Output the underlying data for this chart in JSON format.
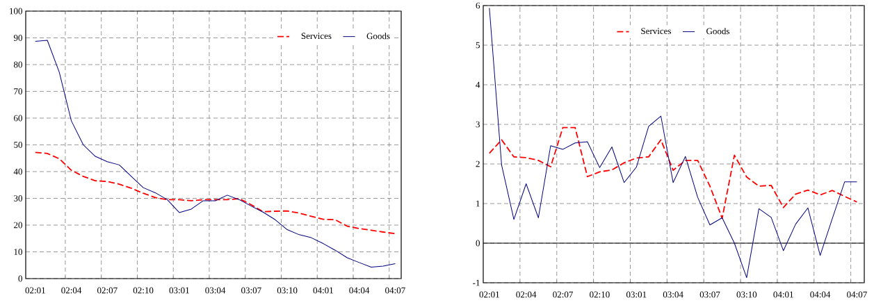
{
  "chart_data": [
    {
      "type": "line",
      "categories": [
        "02:01",
        null,
        null,
        "02:04",
        null,
        null,
        "02:07",
        null,
        null,
        "02:10",
        null,
        null,
        "03:01",
        null,
        null,
        "03:04",
        null,
        null,
        "03:07",
        null,
        null,
        "03:10",
        null,
        null,
        "04:01",
        null,
        null,
        "04:04",
        null,
        null,
        "04:07"
      ],
      "series": [
        {
          "name": "Services",
          "color": "#ff0000",
          "line_style": "dashed",
          "values": [
            47.2,
            46.8,
            44.8,
            40.5,
            38.2,
            36.6,
            36.3,
            35.3,
            33.8,
            31.9,
            30.3,
            29.5,
            29.5,
            29.1,
            29.5,
            29.5,
            29.5,
            29.9,
            27.6,
            25,
            25.2,
            25.3,
            24.5,
            23.3,
            22.2,
            22,
            19.6,
            18.7,
            18.1,
            17.4,
            16.8
          ]
        },
        {
          "name": "Goods",
          "color": "#000080",
          "line_style": "solid",
          "values": [
            88.7,
            89.1,
            77.1,
            59,
            50,
            45.7,
            43.7,
            42.5,
            38.2,
            34,
            32.1,
            29.5,
            24.7,
            26,
            29.1,
            29.1,
            31.2,
            29.5,
            27.1,
            24.8,
            22,
            18.3,
            16.4,
            15.3,
            13.1,
            10.6,
            7.8,
            6,
            4.3,
            4.7,
            5.6
          ]
        }
      ],
      "ylim": [
        0,
        100
      ],
      "yticks": [
        0,
        10,
        20,
        30,
        40,
        50,
        60,
        70,
        80,
        90,
        100
      ],
      "grid": true,
      "legend": "top right"
    },
    {
      "type": "line",
      "categories": [
        "02:01",
        null,
        null,
        "02:04",
        null,
        null,
        "02:07",
        null,
        null,
        "02:10",
        null,
        null,
        "03:01",
        null,
        null,
        "03:04",
        null,
        null,
        "03:07",
        null,
        null,
        "03:10",
        null,
        null,
        "04:01",
        null,
        null,
        "04:04",
        null,
        null,
        "04:07"
      ],
      "series": [
        {
          "name": "Services",
          "color": "#ff0000",
          "line_style": "dashed",
          "values": [
            2.27,
            2.61,
            2.18,
            2.16,
            2.09,
            1.93,
            2.92,
            2.92,
            1.68,
            1.8,
            1.85,
            2.03,
            2.15,
            2.18,
            2.61,
            1.84,
            2.09,
            2.09,
            1.44,
            0.63,
            2.22,
            1.67,
            1.44,
            1.46,
            0.9,
            1.24,
            1.34,
            1.22,
            1.33,
            1.18,
            1.04
          ]
        },
        {
          "name": "Goods",
          "color": "#000080",
          "line_style": "solid",
          "values": [
            5.94,
            1.97,
            0.6,
            1.5,
            0.64,
            2.46,
            2.37,
            2.53,
            2.56,
            1.91,
            2.43,
            1.53,
            1.92,
            2.95,
            3.21,
            1.53,
            2.19,
            1.16,
            0.46,
            0.64,
            0,
            -0.87,
            0.87,
            0.65,
            -0.19,
            0.48,
            0.89,
            -0.31,
            0.63,
            1.55,
            1.55
          ]
        }
      ],
      "ylim": [
        -1,
        6
      ],
      "yticks": [
        -1,
        0,
        1,
        2,
        3,
        4,
        5,
        6
      ],
      "grid": true,
      "legend": "top"
    }
  ]
}
